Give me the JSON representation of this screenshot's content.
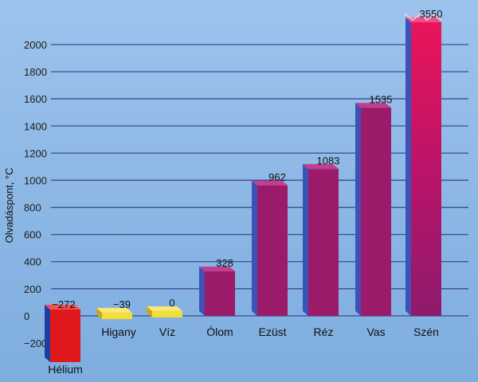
{
  "chart_data": {
    "type": "bar",
    "ylabel": "Olvadáspont, °C",
    "xlabel": "",
    "title": "",
    "ylim": [
      -200,
      2000
    ],
    "yticks": [
      -200,
      0,
      200,
      400,
      600,
      800,
      1000,
      1200,
      1400,
      1600,
      1800,
      2000
    ],
    "grid": true,
    "broken_bar_above_axis": "Szén",
    "categories": [
      "Hélium",
      "Higany",
      "Víz",
      "Ólom",
      "Ezüst",
      "Réz",
      "Vas",
      "Szén"
    ],
    "values": [
      -272,
      -39,
      0,
      328,
      962,
      1083,
      1535,
      3550
    ],
    "value_labels": [
      "−272",
      "−39",
      "0",
      "328",
      "962",
      "1083",
      "1535",
      "3550"
    ],
    "colors": {
      "background": "#8fb9e6",
      "grid": "#2c3a86",
      "bar_front": "#9c1a6a",
      "bar_side": "#3c52b6",
      "bar_top": "#c13f8e",
      "helium_front": "#e0191d",
      "helium_side": "#1f3d9e",
      "yellow_front": "#f2de36",
      "yellow_side": "#c9a91c",
      "szen_front": "#e2155c"
    }
  }
}
